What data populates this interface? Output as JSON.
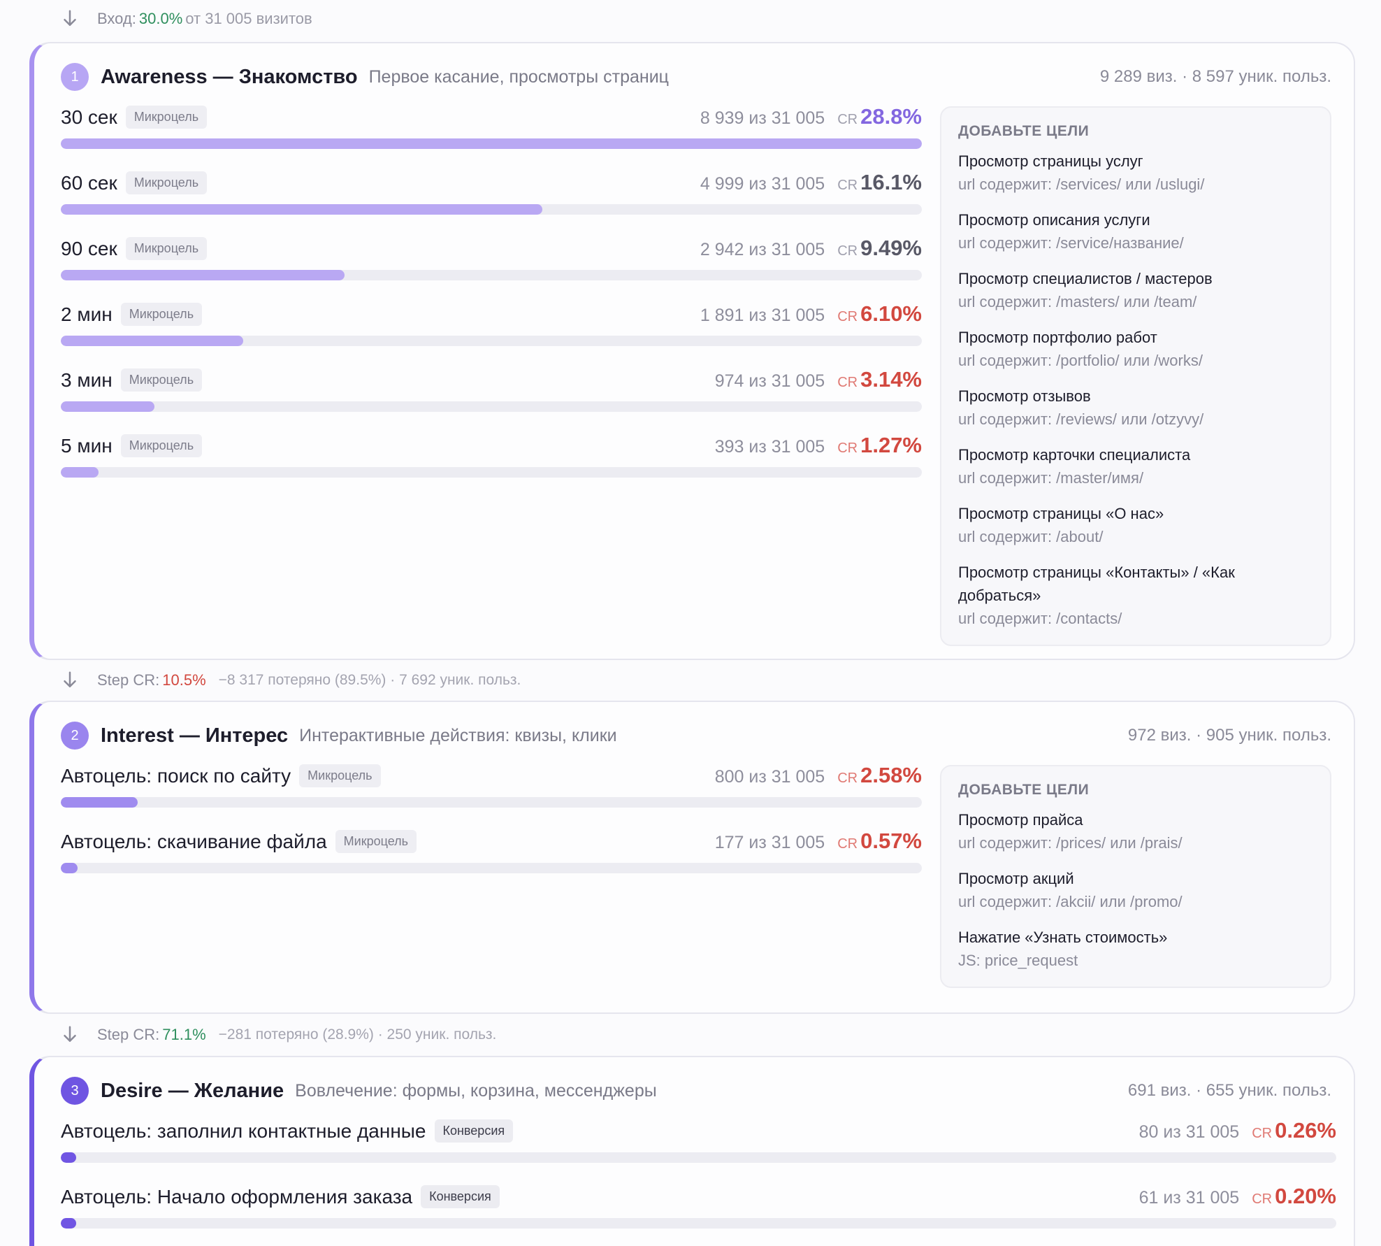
{
  "entry": {
    "label": "Вход:",
    "value": "30.0%",
    "rest": "от 31 005 визитов"
  },
  "transitions": [
    {
      "label": "Step CR:",
      "value": "10.5%",
      "loss": "−8 317 потеряно (89.5%) · 7 692 уник. польз."
    },
    {
      "label": "Step CR:",
      "value": "71.1%",
      "loss": "−281 потеряно (28.9%) · 250 уник. польз."
    }
  ],
  "stages": [
    {
      "num": "1",
      "title": "Awareness — Знакомство",
      "subtitle": "Первое касание, просмотры страниц",
      "stats": "9 289 виз. · 8 597 уник. польз.",
      "goals": [
        {
          "name": "30 сек",
          "tag": "Микроцель",
          "count": "8 939 из 31 005",
          "cr_label": "CR",
          "cr": "28.8%",
          "fill": 0.288
        },
        {
          "name": "60 сек",
          "tag": "Микроцель",
          "count": "4 999 из 31 005",
          "cr_label": "CR",
          "cr": "16.1%",
          "fill": 0.161
        },
        {
          "name": "90 сек",
          "tag": "Микроцель",
          "count": "2 942 из 31 005",
          "cr_label": "CR",
          "cr": "9.49%",
          "fill": 0.0949
        },
        {
          "name": "2 мин",
          "tag": "Микроцель",
          "count": "1 891 из 31 005",
          "cr_label": "CR",
          "cr": "6.10%",
          "fill": 0.061
        },
        {
          "name": "3 мин",
          "tag": "Микроцель",
          "count": "974 из 31 005",
          "cr_label": "CR",
          "cr": "3.14%",
          "fill": 0.0314
        },
        {
          "name": "5 мин",
          "tag": "Микроцель",
          "count": "393 из 31 005",
          "cr_label": "CR",
          "cr": "1.27%",
          "fill": 0.0127
        }
      ],
      "add_title": "ДОБАВЬТЕ ЦЕЛИ",
      "add_goals": [
        {
          "name": "Просмотр страницы услуг",
          "rule": "url содержит: /services/ или /uslugi/"
        },
        {
          "name": "Просмотр описания услуги",
          "rule": "url содержит: /service/название/"
        },
        {
          "name": "Просмотр специалистов / мастеров",
          "rule": "url содержит: /masters/ или /team/"
        },
        {
          "name": "Просмотр портфолио работ",
          "rule": "url содержит: /portfolio/ или /works/"
        },
        {
          "name": "Просмотр отзывов",
          "rule": "url содержит: /reviews/ или /otzyvy/"
        },
        {
          "name": "Просмотр карточки специалиста",
          "rule": "url содержит: /master/имя/"
        },
        {
          "name": "Просмотр страницы «О нас»",
          "rule": "url содержит: /about/"
        },
        {
          "name": "Просмотр страницы «Контакты» / «Как добраться»",
          "rule": "url содержит: /contacts/"
        }
      ]
    },
    {
      "num": "2",
      "title": "Interest — Интерес",
      "subtitle": "Интерактивные действия: квизы, клики",
      "stats": "972 виз. · 905 уник. польз.",
      "goals": [
        {
          "name": "Автоцель: поиск по сайту",
          "tag": "Микроцель",
          "count": "800 из 31 005",
          "cr_label": "CR",
          "cr": "2.58%",
          "fill": 0.0258
        },
        {
          "name": "Автоцель: скачивание файла",
          "tag": "Микроцель",
          "count": "177 из 31 005",
          "cr_label": "CR",
          "cr": "0.57%",
          "fill": 0.0057
        }
      ],
      "add_title": "ДОБАВЬТЕ ЦЕЛИ",
      "add_goals": [
        {
          "name": "Просмотр прайса",
          "rule": "url содержит: /prices/ или /prais/"
        },
        {
          "name": "Просмотр акций",
          "rule": "url содержит: /akcii/ или /promo/"
        },
        {
          "name": "Нажатие «Узнать стоимость»",
          "rule": "JS: price_request"
        }
      ]
    },
    {
      "num": "3",
      "title": "Desire — Желание",
      "subtitle": "Вовлечение: формы, корзина, мессенджеры",
      "stats": "691 виз. · 655 уник. польз.",
      "goals": [
        {
          "name": "Автоцель: заполнил контактные данные",
          "tag": "Конверсия",
          "count": "80 из 31 005",
          "cr_label": "CR",
          "cr": "0.26%",
          "fill": 0.0026
        },
        {
          "name": "Автоцель: Начало оформления заказа",
          "tag": "Конверсия",
          "count": "61 из 31 005",
          "cr_label": "CR",
          "cr": "0.20%",
          "fill": 0.002
        }
      ]
    }
  ],
  "colors": {
    "cr_high": "#8367e0",
    "cr_mid": "#585866",
    "cr_low": "#d2483f",
    "entry_green": "#2f8f5e",
    "stage1_accent": "#a892f0",
    "stage2_accent": "#8f78ea",
    "stage3_accent": "#6f55e2"
  }
}
